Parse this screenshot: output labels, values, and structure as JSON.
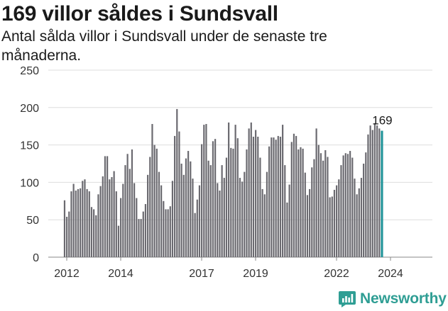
{
  "header": {
    "title": "169 villor såldes i Sundsvall",
    "subtitle": "Antal sålda villor i Sundsvall under de senaste tre månaderna."
  },
  "brand": {
    "name": "Newsworthy",
    "color": "#2f9e94"
  },
  "colors": {
    "bar": "#6b6a70",
    "highlight": "#23959a",
    "grid": "#dddddd"
  },
  "chart_data": {
    "type": "bar",
    "title": "169 villor såldes i Sundsvall",
    "subtitle": "Antal sålda villor i Sundsvall under de senaste tre månaderna.",
    "xlabel": "",
    "ylabel": "",
    "ylim": [
      0,
      250
    ],
    "yticks": [
      0,
      50,
      100,
      150,
      200,
      250
    ],
    "xtick_labels": [
      "2012",
      "2014",
      "2017",
      "2019",
      "2022",
      "2024"
    ],
    "xtick_positions": [
      2012,
      2014,
      2017,
      2019,
      2022,
      2024
    ],
    "grid": true,
    "legend": "none",
    "highlight_label": "169",
    "x_start": 2011.92,
    "x_step": 0.0833333,
    "values": [
      76,
      54,
      61,
      88,
      98,
      89,
      91,
      92,
      102,
      104,
      91,
      88,
      67,
      64,
      56,
      84,
      95,
      108,
      135,
      135,
      104,
      107,
      115,
      88,
      42,
      79,
      98,
      123,
      138,
      118,
      144,
      99,
      79,
      51,
      51,
      61,
      71,
      110,
      134,
      178,
      150,
      145,
      114,
      96,
      75,
      64,
      64,
      68,
      102,
      162,
      198,
      168,
      125,
      110,
      132,
      142,
      128,
      105,
      59,
      77,
      96,
      151,
      177,
      178,
      129,
      123,
      155,
      158,
      99,
      89,
      123,
      106,
      133,
      180,
      146,
      145,
      177,
      159,
      106,
      101,
      114,
      144,
      172,
      180,
      161,
      170,
      161,
      133,
      91,
      84,
      114,
      148,
      160,
      160,
      157,
      162,
      161,
      177,
      123,
      73,
      97,
      154,
      165,
      162,
      144,
      147,
      145,
      113,
      83,
      91,
      120,
      131,
      172,
      150,
      139,
      129,
      143,
      134,
      80,
      81,
      90,
      96,
      104,
      123,
      136,
      139,
      138,
      142,
      133,
      105,
      84,
      92,
      106,
      125,
      140,
      164,
      176,
      170,
      179,
      176,
      172,
      169
    ]
  }
}
